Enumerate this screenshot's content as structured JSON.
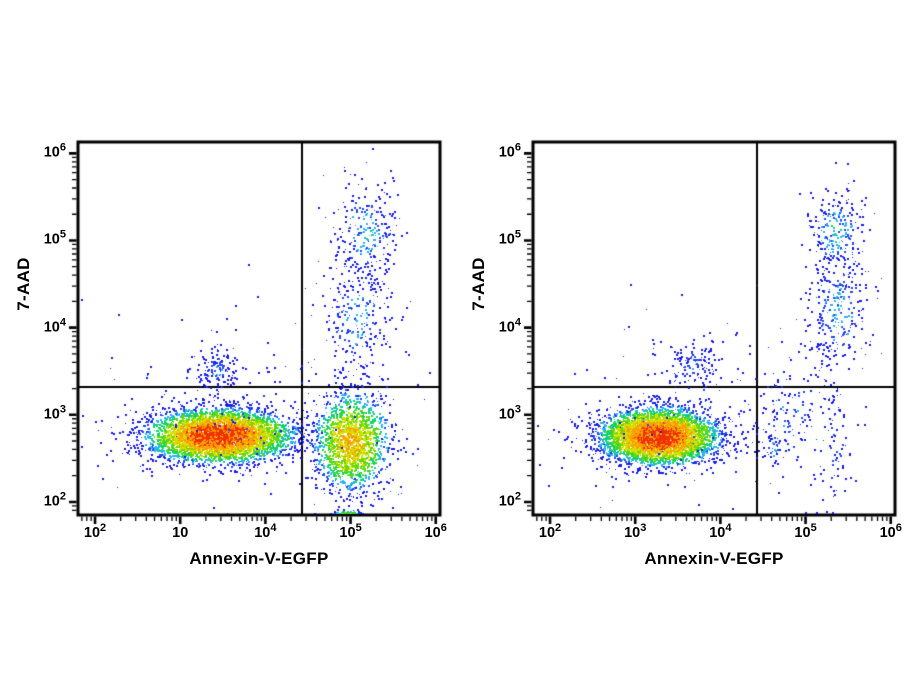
{
  "figure": {
    "background": "#ffffff",
    "axis_color": "#000000",
    "gate_color": "#000000",
    "density_palette": [
      "#1a1ae8",
      "#2448f0",
      "#2bb3f2",
      "#0fd469",
      "#63d909",
      "#d6e000",
      "#fc9d03",
      "#f03000"
    ]
  },
  "chart_data": [
    {
      "type": "scatter",
      "subtype": "flow-cytometry-pseudocolor-density",
      "panel": "left",
      "xlabel": "Annexin-V-EGFP",
      "ylabel": "7-AAD",
      "xscale": "log",
      "yscale": "log",
      "xlim_log": [
        1.8,
        6.05
      ],
      "ylim_log": [
        1.85,
        6.13
      ],
      "grid": false,
      "legend": "none",
      "x_ticks": [
        {
          "log": 2,
          "base": "10",
          "exp": "2"
        },
        {
          "log": 3,
          "base": "10",
          "exp": ""
        },
        {
          "log": 4,
          "base": "10",
          "exp": "4"
        },
        {
          "log": 5,
          "base": "10",
          "exp": "5"
        },
        {
          "log": 6,
          "base": "10",
          "exp": "6"
        }
      ],
      "y_ticks": [
        {
          "log": 2,
          "base": "10",
          "exp": "2"
        },
        {
          "log": 3,
          "base": "10",
          "exp": "3"
        },
        {
          "log": 4,
          "base": "10",
          "exp": "4"
        },
        {
          "log": 5,
          "base": "10",
          "exp": "5"
        },
        {
          "log": 6,
          "base": "10",
          "exp": "6"
        }
      ],
      "quadrant_gates": {
        "x_log": 4.43,
        "y_log": 3.32,
        "x_value_approx": 27000,
        "y_value_approx": 2100
      },
      "clusters": [
        {
          "name": "live-main",
          "cx": 3.45,
          "cy": 2.77,
          "sx": 0.4,
          "sy": 0.145,
          "count": 5200,
          "max_level": 7.0
        },
        {
          "name": "annexin-positive",
          "cx": 5.0,
          "cy": 2.7,
          "sx": 0.22,
          "sy": 0.28,
          "count": 1700,
          "max_level": 5.5
        },
        {
          "name": "dead-upper",
          "cx": 5.18,
          "cy": 5.08,
          "sx": 0.2,
          "sy": 0.3,
          "count": 260,
          "max_level": 2.0
        },
        {
          "name": "dead-mid",
          "cx": 5.08,
          "cy": 4.1,
          "sx": 0.22,
          "sy": 0.38,
          "count": 260,
          "max_level": 1.5
        },
        {
          "name": "early-apoptotic-small",
          "cx": 3.42,
          "cy": 3.52,
          "sx": 0.13,
          "sy": 0.13,
          "count": 140,
          "max_level": 1.2
        },
        {
          "name": "background-scatter",
          "cx": 3.6,
          "cy": 3.05,
          "sx": 0.9,
          "sy": 0.65,
          "count": 170,
          "max_level": 0.3
        },
        {
          "name": "axis-pileup",
          "cx": 4.95,
          "cy": 1.9,
          "sx": 0.09,
          "sy": 0.03,
          "count": 130,
          "max_level": 5.0,
          "pile_bottom": true
        }
      ]
    },
    {
      "type": "scatter",
      "subtype": "flow-cytometry-pseudocolor-density",
      "panel": "right",
      "xlabel": "Annexin-V-EGFP",
      "ylabel": "7-AAD",
      "xscale": "log",
      "yscale": "log",
      "xlim_log": [
        1.8,
        6.05
      ],
      "ylim_log": [
        1.85,
        6.13
      ],
      "grid": false,
      "legend": "none",
      "x_ticks": [
        {
          "log": 2,
          "base": "10",
          "exp": "2"
        },
        {
          "log": 3,
          "base": "10",
          "exp": "3"
        },
        {
          "log": 4,
          "base": "10",
          "exp": "4"
        },
        {
          "log": 5,
          "base": "10",
          "exp": "5"
        },
        {
          "log": 6,
          "base": "10",
          "exp": "6"
        }
      ],
      "y_ticks": [
        {
          "log": 2,
          "base": "10",
          "exp": "2"
        },
        {
          "log": 3,
          "base": "10",
          "exp": "3"
        },
        {
          "log": 4,
          "base": "10",
          "exp": "4"
        },
        {
          "log": 5,
          "base": "10",
          "exp": "5"
        },
        {
          "log": 6,
          "base": "10",
          "exp": "6"
        }
      ],
      "quadrant_gates": {
        "x_log": 4.43,
        "y_log": 3.32,
        "x_value_approx": 27000,
        "y_value_approx": 2100
      },
      "clusters": [
        {
          "name": "live-main",
          "cx": 3.27,
          "cy": 2.76,
          "sx": 0.32,
          "sy": 0.15,
          "count": 5200,
          "max_level": 7.0
        },
        {
          "name": "dead-upper",
          "cx": 5.35,
          "cy": 5.1,
          "sx": 0.17,
          "sy": 0.25,
          "count": 240,
          "max_level": 2.2
        },
        {
          "name": "dead-lower",
          "cx": 5.37,
          "cy": 4.2,
          "sx": 0.2,
          "sy": 0.35,
          "count": 280,
          "max_level": 1.8
        },
        {
          "name": "annexin-positive-scatter",
          "cx": 4.8,
          "cy": 2.95,
          "sx": 0.28,
          "sy": 0.42,
          "count": 170,
          "max_level": 1.2
        },
        {
          "name": "column-low",
          "cx": 5.33,
          "cy": 2.7,
          "sx": 0.1,
          "sy": 0.45,
          "count": 70,
          "max_level": 0.8
        },
        {
          "name": "early-apoptotic-small",
          "cx": 3.68,
          "cy": 3.58,
          "sx": 0.15,
          "sy": 0.14,
          "count": 120,
          "max_level": 1.2
        },
        {
          "name": "background-scatter",
          "cx": 3.5,
          "cy": 3.1,
          "sx": 0.8,
          "sy": 0.6,
          "count": 150,
          "max_level": 0.3
        },
        {
          "name": "cyan-spot",
          "cx": 4.62,
          "cy": 2.62,
          "sx": 0.06,
          "sy": 0.1,
          "count": 30,
          "max_level": 2.0
        }
      ]
    }
  ]
}
